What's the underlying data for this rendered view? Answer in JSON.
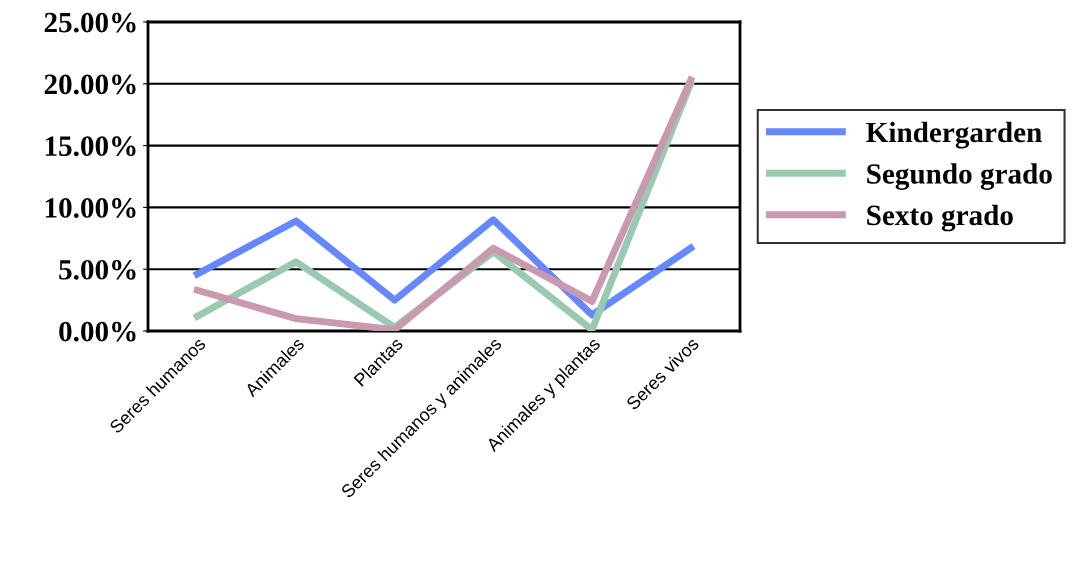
{
  "chart_data": {
    "type": "line",
    "categories": [
      "Seres humanos",
      "Animales",
      "Plantas",
      "Seres humanos y animales",
      "Animales y plantas",
      "Seres vivos"
    ],
    "series": [
      {
        "name": "Kindergarden",
        "color": "#6688ff",
        "values": [
          4.6,
          8.9,
          2.5,
          9.0,
          1.3,
          6.7
        ]
      },
      {
        "name": "Segundo grado",
        "color": "#99cab0",
        "values": [
          1.2,
          5.6,
          0.3,
          6.4,
          0.1,
          20.0
        ]
      },
      {
        "name": "Sexto grado",
        "color": "#c999b0",
        "values": [
          3.3,
          1.0,
          0.1,
          6.7,
          2.4,
          20.3
        ]
      }
    ],
    "ylim": [
      0,
      25
    ],
    "yticks": [
      {
        "value": 0,
        "label": "0.00%"
      },
      {
        "value": 5,
        "label": "5.00%"
      },
      {
        "value": 10,
        "label": "10.00%"
      },
      {
        "value": 15,
        "label": "15.00%"
      },
      {
        "value": 20,
        "label": "20.00%"
      },
      {
        "value": 25,
        "label": "25.00%"
      }
    ],
    "grid": "y",
    "legend": "right",
    "marker": "none",
    "line_style": "solid"
  }
}
